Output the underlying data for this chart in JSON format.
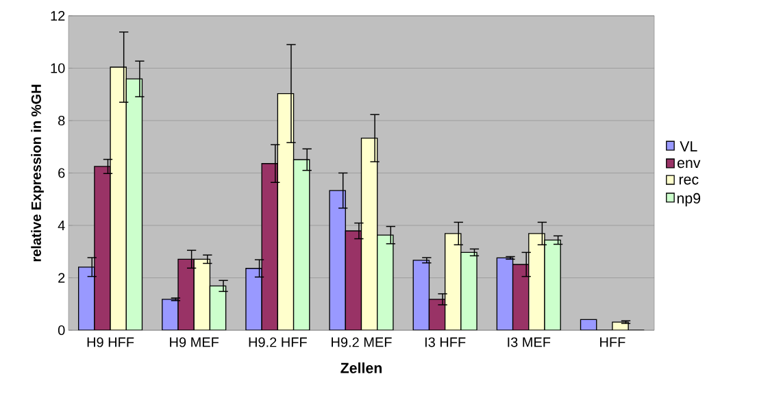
{
  "chart_data": {
    "type": "bar",
    "xlabel": "Zellen",
    "ylabel": "relative Expression in %GH",
    "categories": [
      "H9 HFF",
      "H9 MEF",
      "H9.2 HFF",
      "H9.2 MEF",
      "I3 HFF",
      "I3 MEF",
      "HFF"
    ],
    "series": [
      {
        "name": "VL",
        "color": "#9999ff",
        "values": [
          2.41,
          1.18,
          2.36,
          5.33,
          2.67,
          2.76,
          0.41
        ],
        "errors": [
          0.36,
          0.05,
          0.33,
          0.67,
          0.1,
          0.05,
          null
        ]
      },
      {
        "name": "env",
        "color": "#993366",
        "values": [
          6.25,
          2.71,
          6.36,
          3.79,
          1.18,
          2.51,
          0
        ],
        "errors": [
          0.27,
          0.34,
          0.72,
          0.3,
          0.21,
          0.46,
          null
        ]
      },
      {
        "name": "rec",
        "color": "#ffffcc",
        "values": [
          10.04,
          2.71,
          9.03,
          7.33,
          3.69,
          3.69,
          0.31
        ],
        "errors": [
          1.34,
          0.16,
          1.87,
          0.9,
          0.43,
          0.43,
          0.05
        ]
      },
      {
        "name": "np9",
        "color": "#ccffcc",
        "values": [
          9.59,
          1.69,
          6.51,
          3.63,
          2.97,
          3.44,
          0
        ],
        "errors": [
          0.68,
          0.21,
          0.41,
          0.33,
          0.13,
          0.16,
          null
        ]
      }
    ],
    "ylim": [
      0,
      12
    ],
    "yticks": [
      0,
      2,
      4,
      6,
      8,
      10,
      12
    ],
    "grid": "y",
    "legend": "right"
  }
}
